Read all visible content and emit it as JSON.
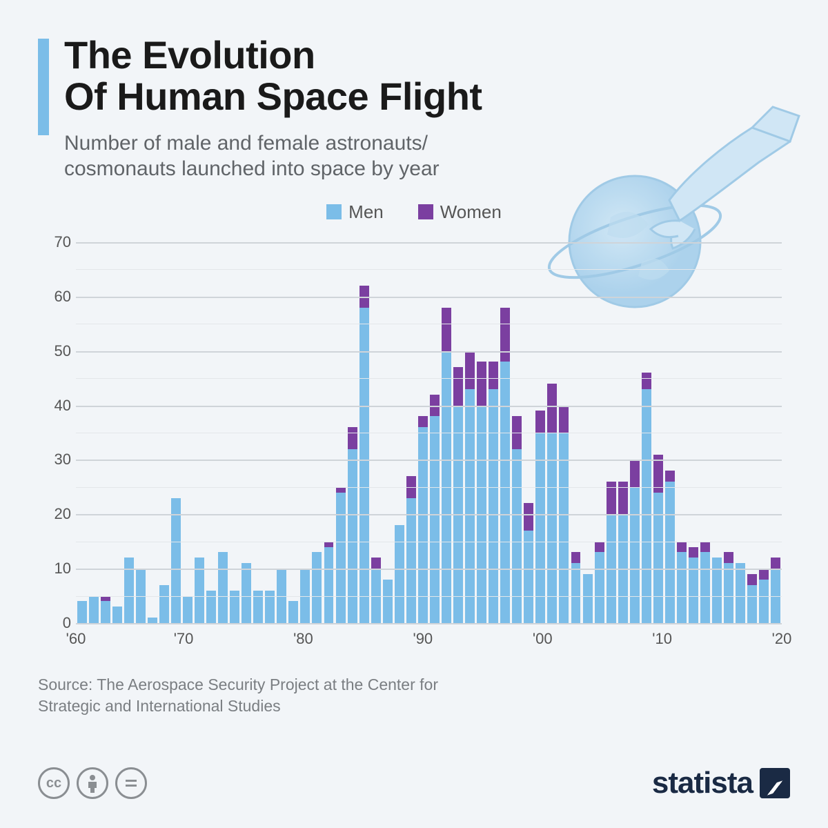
{
  "title_line1": "The Evolution",
  "title_line2": "Of Human Space Flight",
  "subtitle": "Number of male and female astronauts/ cosmonauts launched into space by year",
  "legend": {
    "men": "Men",
    "women": "Women"
  },
  "source": "Source: The Aerospace Security Project at the Center for Strategic and International Studies",
  "brand": "statista",
  "chart": {
    "type": "stacked-bar",
    "colors": {
      "men": "#7bbde8",
      "women": "#7b3fa0",
      "bg": "#f2f5f8",
      "grid_major": "#cfd4d9",
      "grid_minor": "#e3e7ea",
      "text": "#555"
    },
    "ylim": [
      0,
      70
    ],
    "ytick_step": 10,
    "yticks": [
      0,
      10,
      20,
      30,
      40,
      50,
      60,
      70
    ],
    "xlim": [
      1961,
      2020
    ],
    "xtick_years": [
      1960,
      1970,
      1980,
      1990,
      2000,
      2010,
      2020
    ],
    "xtick_labels": [
      "'60",
      "'70",
      "'80",
      "'90",
      "'00",
      "'10",
      "'20"
    ],
    "label_fontsize": 22,
    "bar_width_pct": 82,
    "series": [
      {
        "year": 1961,
        "men": 4,
        "women": 0
      },
      {
        "year": 1962,
        "men": 5,
        "women": 0
      },
      {
        "year": 1963,
        "men": 4,
        "women": 1
      },
      {
        "year": 1964,
        "men": 3,
        "women": 0
      },
      {
        "year": 1965,
        "men": 12,
        "women": 0
      },
      {
        "year": 1966,
        "men": 10,
        "women": 0
      },
      {
        "year": 1967,
        "men": 1,
        "women": 0
      },
      {
        "year": 1968,
        "men": 7,
        "women": 0
      },
      {
        "year": 1969,
        "men": 23,
        "women": 0
      },
      {
        "year": 1970,
        "men": 5,
        "women": 0
      },
      {
        "year": 1971,
        "men": 12,
        "women": 0
      },
      {
        "year": 1972,
        "men": 6,
        "women": 0
      },
      {
        "year": 1973,
        "men": 13,
        "women": 0
      },
      {
        "year": 1974,
        "men": 6,
        "women": 0
      },
      {
        "year": 1975,
        "men": 11,
        "women": 0
      },
      {
        "year": 1976,
        "men": 6,
        "women": 0
      },
      {
        "year": 1977,
        "men": 6,
        "women": 0
      },
      {
        "year": 1978,
        "men": 10,
        "women": 0
      },
      {
        "year": 1979,
        "men": 4,
        "women": 0
      },
      {
        "year": 1980,
        "men": 10,
        "women": 0
      },
      {
        "year": 1981,
        "men": 13,
        "women": 0
      },
      {
        "year": 1982,
        "men": 14,
        "women": 1
      },
      {
        "year": 1983,
        "men": 24,
        "women": 1
      },
      {
        "year": 1984,
        "men": 32,
        "women": 4
      },
      {
        "year": 1985,
        "men": 58,
        "women": 4
      },
      {
        "year": 1986,
        "men": 10,
        "women": 2
      },
      {
        "year": 1987,
        "men": 8,
        "women": 0
      },
      {
        "year": 1988,
        "men": 18,
        "women": 0
      },
      {
        "year": 1989,
        "men": 23,
        "women": 4
      },
      {
        "year": 1990,
        "men": 36,
        "women": 2
      },
      {
        "year": 1991,
        "men": 38,
        "women": 4
      },
      {
        "year": 1992,
        "men": 50,
        "women": 8
      },
      {
        "year": 1993,
        "men": 40,
        "women": 7
      },
      {
        "year": 1994,
        "men": 43,
        "women": 7
      },
      {
        "year": 1995,
        "men": 40,
        "women": 8
      },
      {
        "year": 1996,
        "men": 43,
        "women": 5
      },
      {
        "year": 1997,
        "men": 48,
        "women": 10
      },
      {
        "year": 1998,
        "men": 32,
        "women": 6
      },
      {
        "year": 1999,
        "men": 17,
        "women": 5
      },
      {
        "year": 2000,
        "men": 35,
        "women": 4
      },
      {
        "year": 2001,
        "men": 35,
        "women": 9
      },
      {
        "year": 2002,
        "men": 35,
        "women": 5
      },
      {
        "year": 2003,
        "men": 11,
        "women": 2
      },
      {
        "year": 2004,
        "men": 9,
        "women": 0
      },
      {
        "year": 2005,
        "men": 13,
        "women": 2
      },
      {
        "year": 2006,
        "men": 20,
        "women": 6
      },
      {
        "year": 2007,
        "men": 20,
        "women": 6
      },
      {
        "year": 2008,
        "men": 25,
        "women": 5
      },
      {
        "year": 2009,
        "men": 43,
        "women": 3
      },
      {
        "year": 2010,
        "men": 24,
        "women": 7
      },
      {
        "year": 2011,
        "men": 26,
        "women": 2
      },
      {
        "year": 2012,
        "men": 13,
        "women": 2
      },
      {
        "year": 2013,
        "men": 12,
        "women": 2
      },
      {
        "year": 2014,
        "men": 13,
        "women": 2
      },
      {
        "year": 2015,
        "men": 12,
        "women": 0
      },
      {
        "year": 2016,
        "men": 11,
        "women": 2
      },
      {
        "year": 2017,
        "men": 11,
        "women": 0
      },
      {
        "year": 2018,
        "men": 7,
        "women": 2
      },
      {
        "year": 2019,
        "men": 8,
        "women": 2
      },
      {
        "year": 2020,
        "men": 10,
        "women": 2
      }
    ]
  }
}
